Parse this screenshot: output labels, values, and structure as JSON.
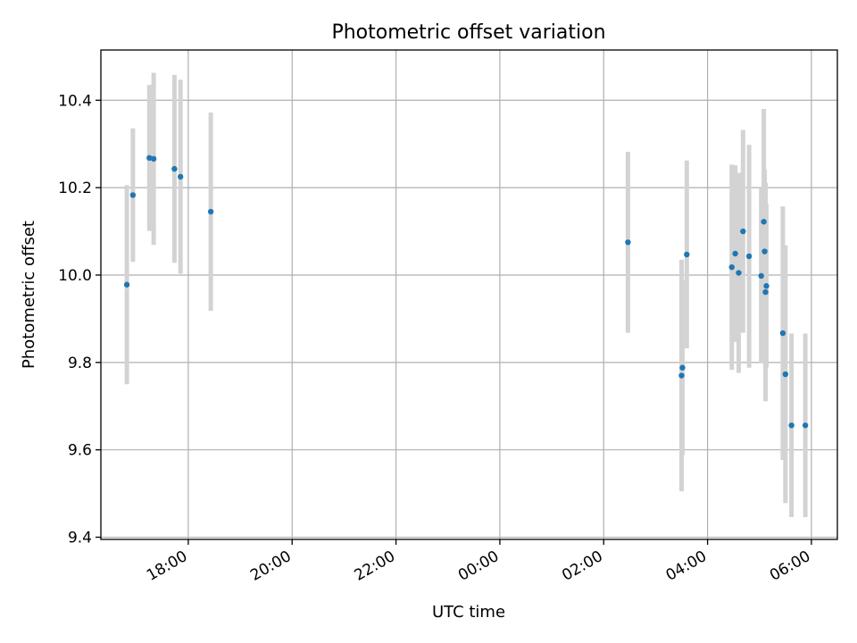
{
  "chart_data": {
    "type": "scatter",
    "title": "Photometric offset variation",
    "xlabel": "UTC time",
    "ylabel": "Photometric offset",
    "x_is_time": true,
    "xlim": [
      "16:19",
      "06:30"
    ],
    "ylim": [
      9.395,
      10.515
    ],
    "x_ticks": [
      "18:00",
      "20:00",
      "22:00",
      "00:00",
      "02:00",
      "04:00",
      "06:00"
    ],
    "y_ticks": [
      9.4,
      9.6,
      9.8,
      10.0,
      10.2,
      10.4
    ],
    "y_tick_labels": [
      "9.4",
      "9.6",
      "9.8",
      "10.0",
      "10.2",
      "10.4"
    ],
    "grid": true,
    "marker_color": "#1f77b4",
    "errorbar_color": "#d3d3d3",
    "points": [
      {
        "time": "16:49",
        "y": 9.978,
        "yerr": 0.228
      },
      {
        "time": "16:56",
        "y": 10.183,
        "yerr": 0.153
      },
      {
        "time": "17:15",
        "y": 10.268,
        "yerr": 0.167
      },
      {
        "time": "17:20",
        "y": 10.266,
        "yerr": 0.197
      },
      {
        "time": "17:44",
        "y": 10.243,
        "yerr": 0.215
      },
      {
        "time": "17:51",
        "y": 10.225,
        "yerr": 0.222
      },
      {
        "time": "18:26",
        "y": 10.145,
        "yerr": 0.227
      },
      {
        "time": "02:28",
        "y": 10.075,
        "yerr": 0.207
      },
      {
        "time": "03:30",
        "y": 9.77,
        "yerr": 0.265
      },
      {
        "time": "03:31",
        "y": 9.788,
        "yerr": 0.2
      },
      {
        "time": "03:36",
        "y": 10.047,
        "yerr": 0.215
      },
      {
        "time": "04:28",
        "y": 10.018,
        "yerr": 0.235
      },
      {
        "time": "04:32",
        "y": 10.049,
        "yerr": 0.202
      },
      {
        "time": "04:36",
        "y": 10.005,
        "yerr": 0.229
      },
      {
        "time": "04:41",
        "y": 10.1,
        "yerr": 0.232
      },
      {
        "time": "04:48",
        "y": 10.043,
        "yerr": 0.255
      },
      {
        "time": "05:02",
        "y": 9.998,
        "yerr": 0.2
      },
      {
        "time": "05:05",
        "y": 10.122,
        "yerr": 0.258
      },
      {
        "time": "05:06",
        "y": 10.054,
        "yerr": 0.187
      },
      {
        "time": "05:07",
        "y": 9.961,
        "yerr": 0.25
      },
      {
        "time": "05:08",
        "y": 9.975,
        "yerr": 0.187
      },
      {
        "time": "05:27",
        "y": 9.867,
        "yerr": 0.29
      },
      {
        "time": "05:30",
        "y": 9.773,
        "yerr": 0.295
      },
      {
        "time": "05:37",
        "y": 9.656,
        "yerr": 0.21
      },
      {
        "time": "05:53",
        "y": 9.656,
        "yerr": 0.21
      }
    ]
  }
}
